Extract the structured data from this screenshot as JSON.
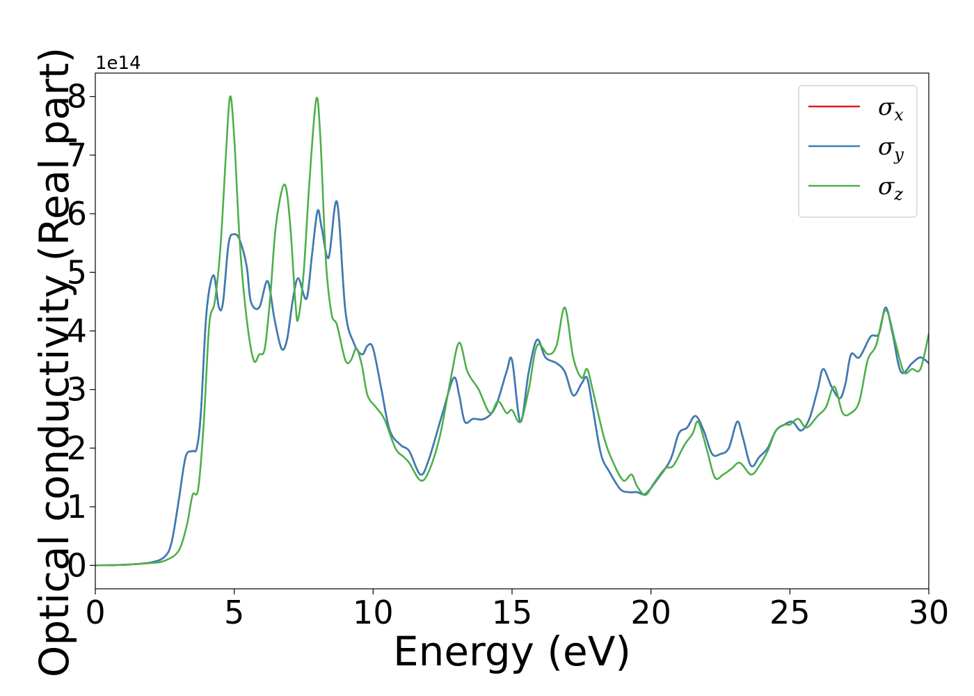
{
  "chart_data": {
    "type": "line",
    "xlabel": "Energy (eV)",
    "ylabel": "Optical conductivity (Real part)",
    "y_offset_text": "1e14",
    "xlim": [
      0,
      30
    ],
    "ylim": [
      -0.4,
      8.4
    ],
    "x_ticks": [
      0,
      5,
      10,
      15,
      20,
      25,
      30
    ],
    "x_tick_labels": [
      "0",
      "5",
      "10",
      "15",
      "20",
      "25",
      "30"
    ],
    "y_ticks": [
      0,
      1,
      2,
      3,
      4,
      5,
      6,
      7,
      8
    ],
    "y_tick_labels": [
      "0",
      "1",
      "2",
      "3",
      "4",
      "5",
      "6",
      "7",
      "8"
    ],
    "grid": false,
    "legend_position": "upper right",
    "series": [
      {
        "name": "σx",
        "legend_symbol": "σ",
        "legend_sub": "x",
        "color": "#e41a1c",
        "x": [
          0,
          1.0,
          2.0,
          2.5,
          2.75,
          3.0,
          3.25,
          3.5,
          3.65,
          3.8,
          4.0,
          4.25,
          4.45,
          4.6,
          4.8,
          5.0,
          5.2,
          5.45,
          5.6,
          5.9,
          6.2,
          6.45,
          6.7,
          6.9,
          7.1,
          7.3,
          7.6,
          7.8,
          8.0,
          8.15,
          8.4,
          8.7,
          9.0,
          9.3,
          9.6,
          9.8,
          10.0,
          10.3,
          10.6,
          11.0,
          11.3,
          11.7,
          12.0,
          12.5,
          12.9,
          13.1,
          13.3,
          13.6,
          14.0,
          14.4,
          14.8,
          15.0,
          15.3,
          15.6,
          15.9,
          16.2,
          16.6,
          16.9,
          17.2,
          17.5,
          17.7,
          17.9,
          18.2,
          18.5,
          18.9,
          19.2,
          19.5,
          19.8,
          20.2,
          20.7,
          21.0,
          21.3,
          21.6,
          21.9,
          22.2,
          22.5,
          22.8,
          23.1,
          23.3,
          23.6,
          23.9,
          24.2,
          24.5,
          24.8,
          25.1,
          25.4,
          25.7,
          26.0,
          26.2,
          26.5,
          26.8,
          27.0,
          27.2,
          27.5,
          27.9,
          28.2,
          28.45,
          28.7,
          29.0,
          29.4,
          29.7,
          30.0
        ],
        "y": [
          0,
          0.01,
          0.05,
          0.15,
          0.4,
          1.1,
          1.85,
          1.95,
          2.0,
          2.6,
          4.3,
          4.95,
          4.4,
          4.5,
          5.5,
          5.65,
          5.55,
          5.1,
          4.5,
          4.4,
          4.85,
          4.2,
          3.7,
          3.85,
          4.5,
          4.9,
          4.55,
          5.3,
          6.05,
          5.75,
          5.25,
          6.2,
          4.35,
          3.8,
          3.6,
          3.75,
          3.7,
          3.0,
          2.3,
          2.05,
          1.95,
          1.55,
          1.8,
          2.6,
          3.2,
          2.9,
          2.45,
          2.5,
          2.5,
          2.7,
          3.3,
          3.5,
          2.45,
          3.3,
          3.85,
          3.55,
          3.45,
          3.3,
          2.9,
          3.1,
          3.2,
          2.7,
          1.9,
          1.6,
          1.3,
          1.25,
          1.25,
          1.22,
          1.45,
          1.8,
          2.25,
          2.35,
          2.55,
          2.3,
          1.9,
          1.9,
          2.0,
          2.45,
          2.2,
          1.7,
          1.85,
          2.0,
          2.3,
          2.4,
          2.45,
          2.3,
          2.5,
          3.0,
          3.35,
          3.05,
          2.85,
          3.1,
          3.6,
          3.55,
          3.9,
          3.95,
          4.4,
          3.95,
          3.3,
          3.45,
          3.55,
          3.45
        ]
      },
      {
        "name": "σy",
        "legend_symbol": "σ",
        "legend_sub": "y",
        "color": "#377eb8",
        "x": [
          0,
          1.0,
          2.0,
          2.5,
          2.75,
          3.0,
          3.25,
          3.5,
          3.65,
          3.8,
          4.0,
          4.25,
          4.45,
          4.6,
          4.8,
          5.0,
          5.2,
          5.45,
          5.6,
          5.9,
          6.2,
          6.45,
          6.7,
          6.9,
          7.1,
          7.3,
          7.6,
          7.8,
          8.0,
          8.15,
          8.4,
          8.7,
          9.0,
          9.3,
          9.6,
          9.8,
          10.0,
          10.3,
          10.6,
          11.0,
          11.3,
          11.7,
          12.0,
          12.5,
          12.9,
          13.1,
          13.3,
          13.6,
          14.0,
          14.4,
          14.8,
          15.0,
          15.3,
          15.6,
          15.9,
          16.2,
          16.6,
          16.9,
          17.2,
          17.5,
          17.7,
          17.9,
          18.2,
          18.5,
          18.9,
          19.2,
          19.5,
          19.8,
          20.2,
          20.7,
          21.0,
          21.3,
          21.6,
          21.9,
          22.2,
          22.5,
          22.8,
          23.1,
          23.3,
          23.6,
          23.9,
          24.2,
          24.5,
          24.8,
          25.1,
          25.4,
          25.7,
          26.0,
          26.2,
          26.5,
          26.8,
          27.0,
          27.2,
          27.5,
          27.9,
          28.2,
          28.45,
          28.7,
          29.0,
          29.4,
          29.7,
          30.0
        ],
        "y": [
          0,
          0.01,
          0.05,
          0.15,
          0.4,
          1.1,
          1.85,
          1.95,
          2.0,
          2.6,
          4.3,
          4.95,
          4.4,
          4.5,
          5.5,
          5.65,
          5.55,
          5.1,
          4.5,
          4.4,
          4.85,
          4.2,
          3.7,
          3.85,
          4.5,
          4.9,
          4.55,
          5.3,
          6.05,
          5.75,
          5.25,
          6.2,
          4.35,
          3.8,
          3.6,
          3.75,
          3.7,
          3.0,
          2.3,
          2.05,
          1.95,
          1.55,
          1.8,
          2.6,
          3.2,
          2.9,
          2.45,
          2.5,
          2.5,
          2.7,
          3.3,
          3.5,
          2.45,
          3.3,
          3.85,
          3.55,
          3.45,
          3.3,
          2.9,
          3.1,
          3.2,
          2.7,
          1.9,
          1.6,
          1.3,
          1.25,
          1.25,
          1.22,
          1.45,
          1.8,
          2.25,
          2.35,
          2.55,
          2.3,
          1.9,
          1.9,
          2.0,
          2.45,
          2.2,
          1.7,
          1.85,
          2.0,
          2.3,
          2.4,
          2.45,
          2.3,
          2.5,
          3.0,
          3.35,
          3.05,
          2.85,
          3.1,
          3.6,
          3.55,
          3.9,
          3.95,
          4.4,
          3.95,
          3.3,
          3.45,
          3.55,
          3.45
        ]
      },
      {
        "name": "σz",
        "legend_symbol": "σ",
        "legend_sub": "z",
        "color": "#4daf4a",
        "x": [
          0,
          1.0,
          2.0,
          2.5,
          3.0,
          3.3,
          3.5,
          3.7,
          3.9,
          4.1,
          4.3,
          4.5,
          4.7,
          4.85,
          5.0,
          5.2,
          5.45,
          5.7,
          5.9,
          6.1,
          6.3,
          6.5,
          6.8,
          7.0,
          7.2,
          7.3,
          7.5,
          7.7,
          7.95,
          8.1,
          8.3,
          8.5,
          8.7,
          9.0,
          9.2,
          9.4,
          9.6,
          9.8,
          10.1,
          10.4,
          10.8,
          11.1,
          11.3,
          11.7,
          12.0,
          12.4,
          12.8,
          13.1,
          13.4,
          13.8,
          14.2,
          14.5,
          14.8,
          15.0,
          15.3,
          15.6,
          15.9,
          16.3,
          16.6,
          16.9,
          17.2,
          17.5,
          17.7,
          17.9,
          18.3,
          18.6,
          19.0,
          19.3,
          19.5,
          19.8,
          20.1,
          20.5,
          20.8,
          21.2,
          21.5,
          21.7,
          22.0,
          22.3,
          22.6,
          22.9,
          23.2,
          23.6,
          23.9,
          24.2,
          24.5,
          24.8,
          25.0,
          25.3,
          25.6,
          26.0,
          26.3,
          26.6,
          26.9,
          27.2,
          27.5,
          27.8,
          28.1,
          28.45,
          28.8,
          29.1,
          29.4,
          29.7,
          30.0
        ],
        "y": [
          0,
          0.01,
          0.04,
          0.08,
          0.25,
          0.7,
          1.2,
          1.3,
          2.4,
          4.1,
          4.5,
          5.4,
          7.0,
          8.0,
          7.3,
          5.5,
          4.2,
          3.5,
          3.6,
          3.7,
          4.6,
          5.8,
          6.5,
          5.9,
          4.5,
          4.2,
          5.0,
          6.5,
          7.95,
          7.3,
          5.2,
          4.3,
          4.1,
          3.5,
          3.5,
          3.7,
          3.4,
          2.9,
          2.7,
          2.5,
          2.0,
          1.85,
          1.75,
          1.45,
          1.6,
          2.2,
          3.2,
          3.8,
          3.3,
          3.0,
          2.6,
          2.8,
          2.6,
          2.65,
          2.45,
          3.0,
          3.75,
          3.6,
          3.75,
          4.4,
          3.55,
          3.2,
          3.35,
          3.0,
          2.2,
          1.8,
          1.45,
          1.55,
          1.35,
          1.2,
          1.4,
          1.65,
          1.7,
          2.05,
          2.25,
          2.45,
          2.0,
          1.5,
          1.55,
          1.65,
          1.75,
          1.55,
          1.7,
          1.95,
          2.3,
          2.4,
          2.4,
          2.5,
          2.35,
          2.55,
          2.7,
          3.05,
          2.6,
          2.6,
          2.8,
          3.5,
          3.75,
          4.35,
          3.8,
          3.3,
          3.35,
          3.35,
          3.95
        ]
      }
    ]
  }
}
